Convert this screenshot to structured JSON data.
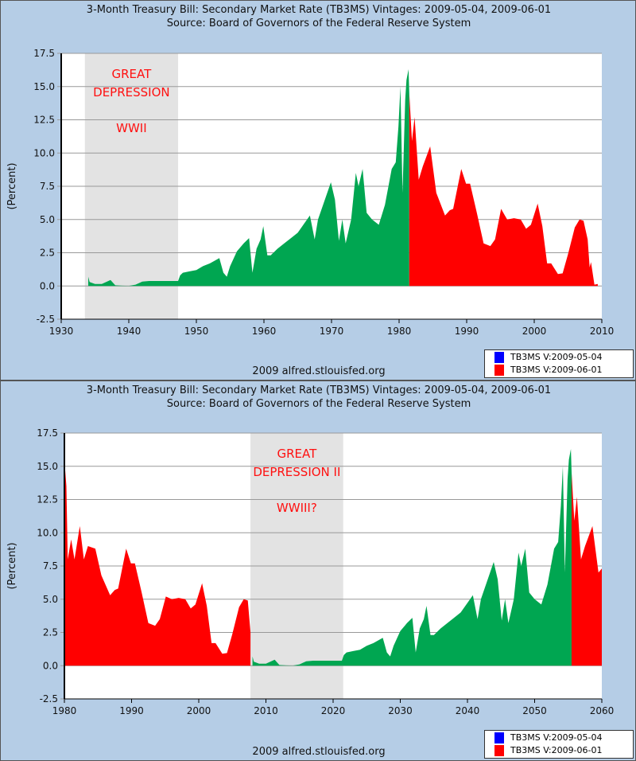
{
  "chart_data": [
    {
      "type": "area",
      "title": "3-Month Treasury Bill: Secondary Market Rate (TB3MS) Vintages: 2009-05-04, 2009-06-01",
      "subtitle": "Source: Board of Governors of the Federal Reserve System",
      "ylabel": "(Percent)",
      "xlim": [
        1930,
        2010
      ],
      "ylim": [
        -2.5,
        17.5
      ],
      "xticks": [
        "1930",
        "1940",
        "1950",
        "1960",
        "1970",
        "1980",
        "1990",
        "2000",
        "2010"
      ],
      "yticks": [
        "17.5",
        "15.0",
        "12.5",
        "10.0",
        "7.5",
        "5.0",
        "2.5",
        "0.0",
        "-2.5"
      ],
      "shaded": [
        1933.5,
        1947.3
      ],
      "annotation": [
        "GREAT",
        "DEPRESSION",
        "WWII"
      ],
      "series": [
        {
          "name": "green",
          "color": "#00a651",
          "year_shift": 0,
          "points": "green"
        },
        {
          "name": "red",
          "color": "#ff0000",
          "year_shift": 0,
          "points": "red"
        }
      ],
      "footer": "2009 alfred.stlouisfed.org"
    },
    {
      "type": "area",
      "title": "3-Month Treasury Bill: Secondary Market Rate (TB3MS) Vintages: 2009-05-04, 2009-06-01",
      "subtitle": "Source: Board of Governors of the Federal Reserve System",
      "ylabel": "(Percent)",
      "xlim": [
        1980,
        2060
      ],
      "ylim": [
        -2.5,
        17.5
      ],
      "xticks": [
        "1980",
        "1990",
        "2000",
        "2010",
        "2020",
        "2030",
        "2040",
        "2050",
        "2060"
      ],
      "yticks": [
        "17.5",
        "15.0",
        "12.5",
        "10.0",
        "7.5",
        "5.0",
        "2.5",
        "0.0",
        "-2.5"
      ],
      "shaded": [
        2007.7,
        2021.5
      ],
      "annotation": [
        "GREAT",
        "DEPRESSION II",
        "WWIII?"
      ],
      "series": [
        {
          "name": "red-early",
          "color": "#ff0000",
          "year_shift": 0,
          "points": "red_bottom"
        },
        {
          "name": "green",
          "color": "#00a651",
          "year_shift": 74,
          "points": "green"
        },
        {
          "name": "red-tail",
          "color": "#ff0000",
          "year_shift": 74,
          "points": "red_tail"
        }
      ],
      "footer": "2009 alfred.stlouisfed.org"
    }
  ],
  "points": {
    "green": [
      [
        1934,
        0.7
      ],
      [
        1934.2,
        0.3
      ],
      [
        1935,
        0.15
      ],
      [
        1936,
        0.15
      ],
      [
        1937.3,
        0.45
      ],
      [
        1938,
        0.05
      ],
      [
        1939,
        0.02
      ],
      [
        1940,
        0.01
      ],
      [
        1941,
        0.1
      ],
      [
        1942,
        0.33
      ],
      [
        1943,
        0.375
      ],
      [
        1947.3,
        0.375
      ],
      [
        1947.6,
        0.8
      ],
      [
        1948,
        1.0
      ],
      [
        1949,
        1.1
      ],
      [
        1950,
        1.2
      ],
      [
        1951,
        1.5
      ],
      [
        1952,
        1.7
      ],
      [
        1953.4,
        2.1
      ],
      [
        1954,
        1.0
      ],
      [
        1954.5,
        0.7
      ],
      [
        1955,
        1.5
      ],
      [
        1956,
        2.6
      ],
      [
        1957,
        3.2
      ],
      [
        1957.8,
        3.6
      ],
      [
        1958.3,
        1.0
      ],
      [
        1958.9,
        2.8
      ],
      [
        1959.5,
        3.5
      ],
      [
        1959.9,
        4.5
      ],
      [
        1960.5,
        2.3
      ],
      [
        1961,
        2.3
      ],
      [
        1962,
        2.8
      ],
      [
        1963,
        3.2
      ],
      [
        1964,
        3.6
      ],
      [
        1965,
        4.0
      ],
      [
        1966.8,
        5.3
      ],
      [
        1967.5,
        3.5
      ],
      [
        1968,
        5.0
      ],
      [
        1969.9,
        7.8
      ],
      [
        1970.5,
        6.5
      ],
      [
        1971.1,
        3.4
      ],
      [
        1971.6,
        5.0
      ],
      [
        1972.1,
        3.2
      ],
      [
        1972.9,
        5.0
      ],
      [
        1973.6,
        8.5
      ],
      [
        1974,
        7.5
      ],
      [
        1974.6,
        8.8
      ],
      [
        1975.2,
        5.5
      ],
      [
        1976,
        5.0
      ],
      [
        1977,
        4.6
      ],
      [
        1977.9,
        6.1
      ],
      [
        1978.9,
        8.8
      ],
      [
        1979.5,
        9.3
      ],
      [
        1979.9,
        12.0
      ],
      [
        1980.2,
        15.0
      ],
      [
        1980.5,
        7.0
      ],
      [
        1980.9,
        14.0
      ],
      [
        1981.1,
        15.5
      ],
      [
        1981.4,
        16.3
      ],
      [
        1981.5,
        14.5
      ]
    ],
    "red": [
      [
        1981.5,
        14.5
      ],
      [
        1981.9,
        10.9
      ],
      [
        1982.3,
        12.7
      ],
      [
        1982.9,
        8.0
      ],
      [
        1983.5,
        9.0
      ],
      [
        1984.6,
        10.5
      ],
      [
        1985.5,
        7.0
      ],
      [
        1986.8,
        5.3
      ],
      [
        1987.5,
        5.7
      ],
      [
        1988,
        5.8
      ],
      [
        1989.2,
        8.8
      ],
      [
        1989.9,
        7.7
      ],
      [
        1990.5,
        7.7
      ],
      [
        1991.5,
        5.5
      ],
      [
        1992.5,
        3.2
      ],
      [
        1993.5,
        3.0
      ],
      [
        1994.2,
        3.5
      ],
      [
        1995.1,
        5.8
      ],
      [
        1996,
        5.0
      ],
      [
        1997,
        5.1
      ],
      [
        1998,
        5.0
      ],
      [
        1998.8,
        4.3
      ],
      [
        1999.5,
        4.6
      ],
      [
        2000.5,
        6.2
      ],
      [
        2001.2,
        4.5
      ],
      [
        2001.9,
        1.7
      ],
      [
        2002.5,
        1.7
      ],
      [
        2003.5,
        0.9
      ],
      [
        2004.2,
        0.95
      ],
      [
        2005,
        2.4
      ],
      [
        2006,
        4.4
      ],
      [
        2006.7,
        5.0
      ],
      [
        2007.3,
        4.9
      ],
      [
        2007.9,
        3.5
      ],
      [
        2008.2,
        1.4
      ],
      [
        2008.4,
        1.8
      ],
      [
        2008.9,
        0.1
      ],
      [
        2009.4,
        0.15
      ]
    ],
    "red_bottom": [
      [
        1980,
        15.5
      ],
      [
        1980.3,
        13.5
      ],
      [
        1980.5,
        8.0
      ],
      [
        1981,
        9.5
      ],
      [
        1981.5,
        8.0
      ],
      [
        1982.3,
        10.5
      ],
      [
        1982.9,
        8.0
      ],
      [
        1983.5,
        9.0
      ],
      [
        1984.6,
        8.8
      ],
      [
        1985.5,
        6.8
      ],
      [
        1986.8,
        5.3
      ],
      [
        1987.5,
        5.7
      ],
      [
        1988,
        5.8
      ],
      [
        1989.2,
        8.8
      ],
      [
        1989.9,
        7.7
      ],
      [
        1990.5,
        7.7
      ],
      [
        1991.5,
        5.5
      ],
      [
        1992.5,
        3.2
      ],
      [
        1993.5,
        3.0
      ],
      [
        1994.2,
        3.5
      ],
      [
        1995.1,
        5.2
      ],
      [
        1996,
        5.0
      ],
      [
        1997,
        5.1
      ],
      [
        1998,
        5.0
      ],
      [
        1998.8,
        4.3
      ],
      [
        1999.5,
        4.6
      ],
      [
        2000.5,
        6.2
      ],
      [
        2001.2,
        4.5
      ],
      [
        2001.9,
        1.7
      ],
      [
        2002.5,
        1.7
      ],
      [
        2003.5,
        0.9
      ],
      [
        2004.2,
        0.95
      ],
      [
        2005,
        2.4
      ],
      [
        2006,
        4.4
      ],
      [
        2006.7,
        5.0
      ],
      [
        2007.3,
        4.9
      ],
      [
        2007.7,
        2.5
      ]
    ],
    "red_tail": [
      [
        1981.5,
        14.5
      ],
      [
        1981.9,
        10.9
      ],
      [
        1982.3,
        12.7
      ],
      [
        1982.9,
        8.0
      ],
      [
        1983.5,
        9.0
      ],
      [
        1984.6,
        10.5
      ],
      [
        1985.5,
        7.0
      ],
      [
        1986,
        7.3
      ]
    ]
  },
  "legend": [
    {
      "label": "TB3MS V:2009-05-04",
      "color": "#0000ff"
    },
    {
      "label": "TB3MS V:2009-06-01",
      "color": "#ff0000"
    }
  ]
}
